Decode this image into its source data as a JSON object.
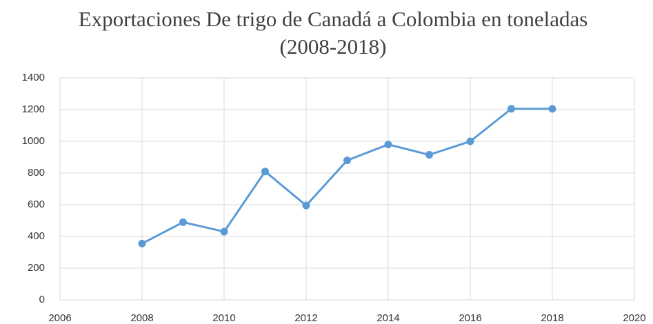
{
  "chart_data": {
    "type": "line",
    "title": "Exportaciones De trigo de Canadá a Colombia en toneladas (2008-2018)",
    "x": [
      2008,
      2009,
      2010,
      2011,
      2012,
      2013,
      2014,
      2015,
      2016,
      2017,
      2018
    ],
    "series": [
      {
        "name": "Exportaciones",
        "color": "#5b9bd5",
        "values": [
          355,
          490,
          430,
          810,
          595,
          880,
          980,
          915,
          1000,
          1205,
          1205
        ]
      }
    ],
    "xlim": [
      2006,
      2020
    ],
    "xticks": [
      2006,
      2008,
      2010,
      2012,
      2014,
      2016,
      2018,
      2020
    ],
    "ylim": [
      0,
      1400
    ],
    "yticks": [
      0,
      200,
      400,
      600,
      800,
      1000,
      1200,
      1400
    ],
    "grid": true
  }
}
